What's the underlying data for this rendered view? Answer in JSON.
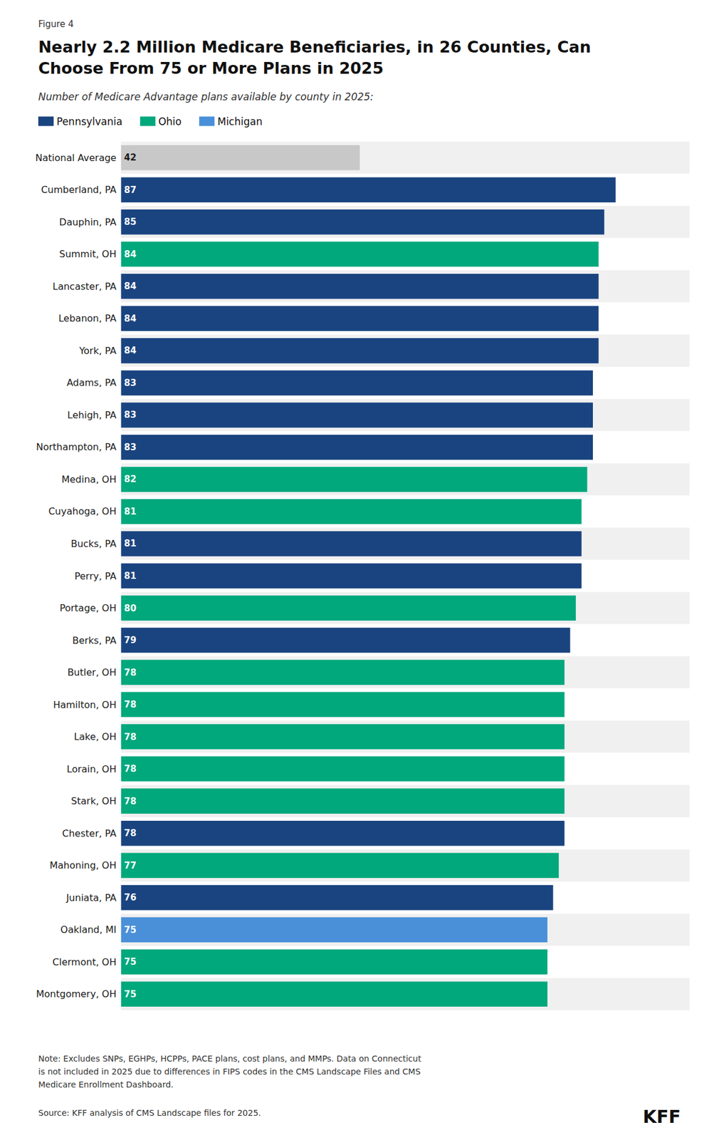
{
  "chart_data": {
    "type": "bar",
    "orientation": "horizontal",
    "title": "Nearly 2.2 Million Medicare Beneficiaries, in 26 Counties, Can\nChoose From 75 or More Plans in 2025",
    "subtitle": "Number of Medicare Advantage plans available by county in 2025:",
    "annotations": [
      "Figure 4",
      "Note: Excludes SNPs, EGHPs, HCPPs, PACE plans, cost plans, and MMPs. Data on Connecticut\nis not included in 2025 due to differences in FIPS codes in the CMS Landscape Files and CMS\nMedicare Enrollment Dashboard.",
      "Source: KFF analysis of CMS Landscape files for 2025.",
      "KFF"
    ],
    "categories": [
      "National Average",
      "Cumberland, PA",
      "Dauphin, PA",
      "Summit, OH",
      "Lancaster, PA",
      "Lebanon, PA",
      "York, PA",
      "Adams, PA",
      "Lehigh, PA",
      "Northampton, PA",
      "Medina, OH",
      "Cuyahoga, OH",
      "Bucks, PA",
      "Perry, PA",
      "Portage, OH",
      "Berks, PA",
      "Butler, OH",
      "Hamilton, OH",
      "Lake, OH",
      "Lorain, OH",
      "Stark, OH",
      "Chester, PA",
      "Mahoning, OH",
      "Juniata, PA",
      "Oakland, MI",
      "Clermont, OH",
      "Montgomery, OH"
    ],
    "series": [
      {
        "color": "#c8c8c8",
        "values": [
          42,
          null,
          null,
          null,
          null,
          null,
          null,
          null,
          null,
          null,
          null,
          null,
          null,
          null,
          null,
          null,
          null,
          null,
          null,
          null,
          null,
          null,
          null,
          null,
          null,
          null,
          null
        ]
      },
      {
        "name": "Pennsylvania",
        "color": "#1a4480",
        "values": [
          null,
          87,
          85,
          null,
          84,
          84,
          84,
          83,
          83,
          83,
          null,
          null,
          81,
          81,
          null,
          79,
          null,
          null,
          null,
          null,
          null,
          78,
          null,
          76,
          null,
          null,
          null
        ]
      },
      {
        "name": "Ohio",
        "color": "#00a87c",
        "values": [
          null,
          null,
          null,
          84,
          null,
          null,
          null,
          null,
          null,
          null,
          82,
          81,
          null,
          null,
          80,
          null,
          78,
          78,
          78,
          78,
          78,
          null,
          77,
          null,
          null,
          75,
          75
        ]
      },
      {
        "name": "Michigan",
        "color": "#4a90d9",
        "values": [
          null,
          null,
          null,
          null,
          null,
          null,
          null,
          null,
          null,
          null,
          null,
          null,
          null,
          null,
          null,
          null,
          null,
          null,
          null,
          null,
          null,
          null,
          null,
          null,
          75,
          null,
          null
        ]
      }
    ],
    "xlim": [
      0,
      100
    ],
    "grid": false,
    "data_labels": true,
    "tick_labels": "y"
  }
}
